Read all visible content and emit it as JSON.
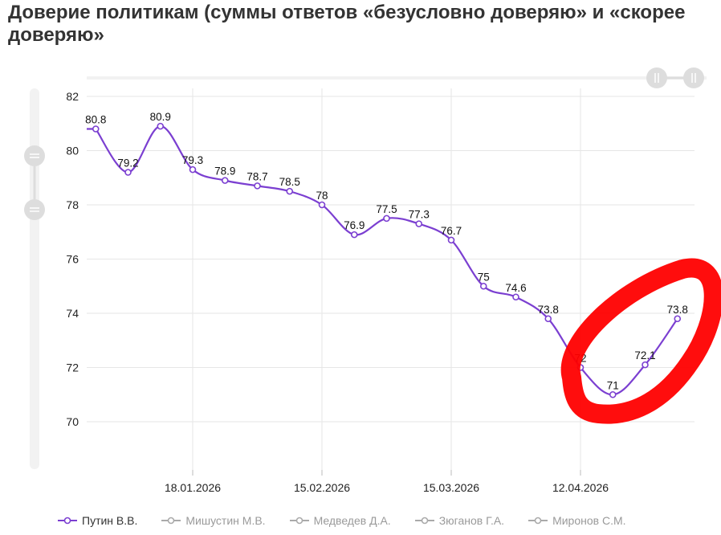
{
  "title": "Доверие политикам (суммы ответов «безусловно доверяю» и «скорее доверяю»",
  "colors": {
    "series": "#7b3fd1",
    "inactive": "#aaaaaa",
    "grid": "#e6e6e6",
    "annotation": "#ff0000",
    "scrollbar": "#f2f2f2",
    "handle": "#dddddd"
  },
  "chart_data": {
    "type": "line",
    "title": "Доверие политикам (суммы ответов «безусловно доверяю» и «скорее доверяю»",
    "xlabel": "",
    "ylabel": "",
    "ylim": [
      68,
      82
    ],
    "yticks": [
      70,
      72,
      74,
      76,
      78,
      80,
      82
    ],
    "xticks": [
      "18.01.2026",
      "15.02.2026",
      "15.03.2026",
      "12.04.2026"
    ],
    "grid": true,
    "legend_position": "bottom",
    "series": [
      {
        "name": "Путин В.В.",
        "visible": true,
        "x": [
          "2025-12-28",
          "2026-01-04",
          "2026-01-11",
          "2026-01-18",
          "2026-01-25",
          "2026-02-01",
          "2026-02-08",
          "2026-02-15",
          "2026-02-22",
          "2026-03-01",
          "2026-03-08",
          "2026-03-15",
          "2026-03-22",
          "2026-03-29",
          "2026-04-05",
          "2026-04-12",
          "2026-04-19",
          "2026-04-26",
          "2026-05-03"
        ],
        "values": [
          80.8,
          79.2,
          80.9,
          79.3,
          78.9,
          78.7,
          78.5,
          78,
          76.9,
          77.5,
          77.3,
          76.7,
          75,
          74.6,
          73.8,
          72,
          71,
          72.1,
          73.8
        ]
      },
      {
        "name": "Мишустин М.В.",
        "visible": false
      },
      {
        "name": "Медведев Д.А.",
        "visible": false
      },
      {
        "name": "Зюганов Г.А.",
        "visible": false
      },
      {
        "name": "Миронов С.М.",
        "visible": false
      }
    ]
  }
}
